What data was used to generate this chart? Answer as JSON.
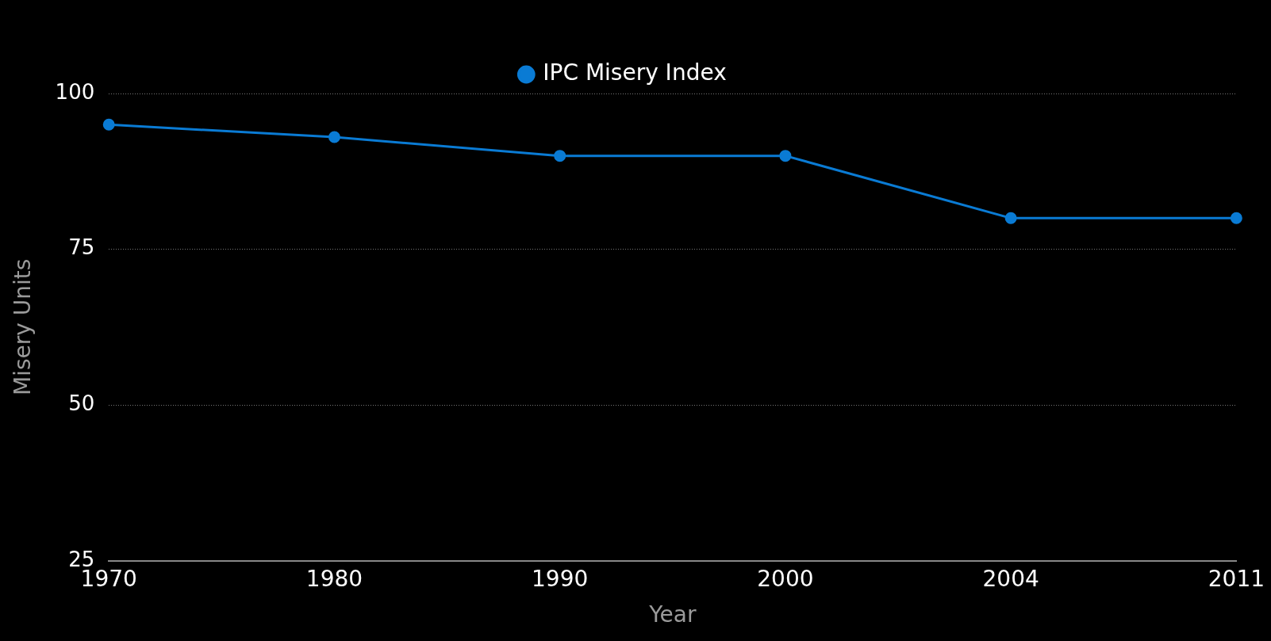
{
  "chart_data": {
    "type": "line",
    "xlabel": "Year",
    "ylabel": "Misery Units",
    "categories": [
      "1970",
      "1980",
      "1990",
      "2000",
      "2004",
      "2011"
    ],
    "series": [
      {
        "name": "IPC Misery Index",
        "color": "#0a7bd4",
        "values": [
          95,
          93,
          90,
          90,
          80,
          80
        ]
      }
    ],
    "ylim": [
      25,
      100
    ],
    "yticks": [
      25,
      50,
      75,
      100
    ],
    "grid": "y",
    "legend": "top",
    "marker": "circle",
    "line_style": "solid"
  }
}
